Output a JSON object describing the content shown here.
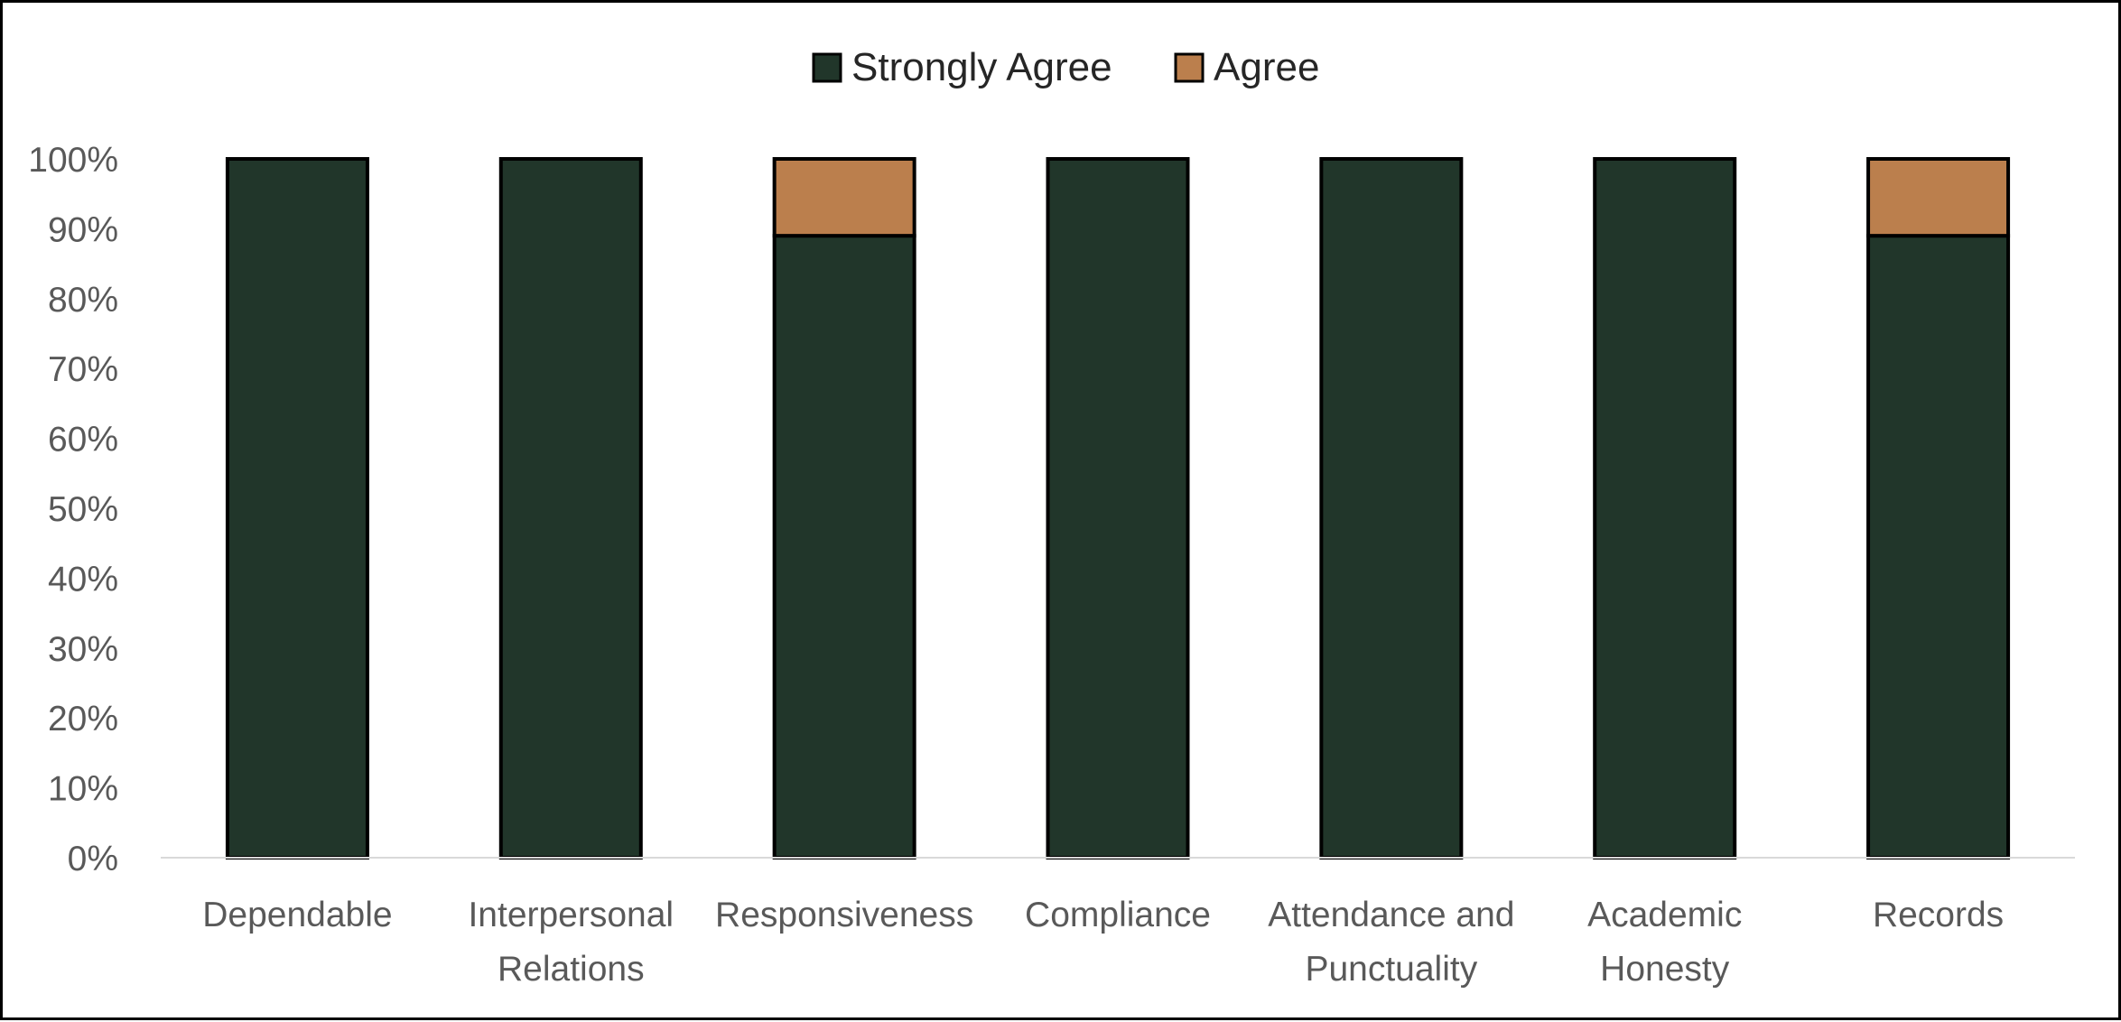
{
  "chart_data": {
    "type": "bar",
    "stacked": true,
    "categories": [
      [
        "Dependable"
      ],
      [
        "Interpersonal",
        "Relations"
      ],
      [
        "Responsiveness"
      ],
      [
        "Compliance"
      ],
      [
        "Attendance and",
        "Punctuality"
      ],
      [
        "Academic",
        "Honesty"
      ],
      [
        "Records"
      ]
    ],
    "series": [
      {
        "name": "Strongly Agree",
        "color": "#21362a",
        "values": [
          100,
          100,
          89,
          100,
          100,
          100,
          89
        ]
      },
      {
        "name": "Agree",
        "color": "#bb7f4d",
        "values": [
          0,
          0,
          11,
          0,
          0,
          0,
          11
        ]
      }
    ],
    "yticks": [
      "0%",
      "10%",
      "20%",
      "30%",
      "40%",
      "50%",
      "60%",
      "70%",
      "80%",
      "90%",
      "100%"
    ],
    "ylim": [
      0,
      100
    ],
    "legend_position": "top",
    "grid": false
  }
}
